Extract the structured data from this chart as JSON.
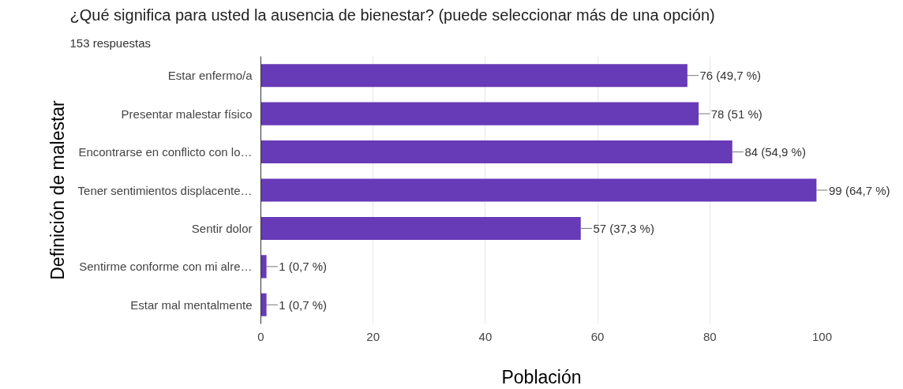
{
  "chart_data": {
    "type": "bar",
    "orientation": "horizontal",
    "title": "¿Qué significa para usted la ausencia de bienestar? (puede seleccionar más de una opción)",
    "subtitle": "153 respuestas",
    "xlabel": "Población",
    "ylabel": "Definición de malestar",
    "categories": [
      "Estar enfermo/a",
      "Presentar malestar físico",
      "Encontrarse en conflicto con lo…",
      "Tener sentimientos displacente…",
      "Sentir dolor",
      "Sentirme conforme con mi alre…",
      "Estar mal mentalmente"
    ],
    "values": [
      76,
      78,
      84,
      99,
      57,
      1,
      1
    ],
    "value_labels": [
      "76 (49,7 %)",
      "78 (51 %)",
      "84 (54,9 %)",
      "99 (64,7 %)",
      "57 (37,3 %)",
      "1 (0,7 %)",
      "1 (0,7 %)"
    ],
    "color": "#673ab7",
    "xlim": [
      0,
      100
    ],
    "xticks": [
      0,
      20,
      40,
      60,
      80,
      100
    ],
    "grid": "x"
  }
}
